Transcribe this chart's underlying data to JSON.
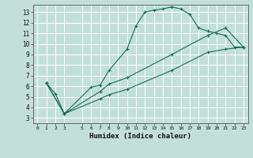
{
  "title": "",
  "xlabel": "Humidex (Indice chaleur)",
  "bg_color": "#c2e0d8",
  "grid_color": "#ffffff",
  "line_color": "#1a6b5a",
  "xlim": [
    -0.5,
    23.5
  ],
  "ylim": [
    2.5,
    13.7
  ],
  "xticks": [
    0,
    1,
    2,
    3,
    5,
    6,
    7,
    8,
    9,
    10,
    11,
    12,
    13,
    14,
    15,
    16,
    17,
    18,
    19,
    20,
    21,
    22,
    23
  ],
  "yticks": [
    3,
    4,
    5,
    6,
    7,
    8,
    9,
    10,
    11,
    12,
    13
  ],
  "line1_x": [
    1,
    2,
    3,
    6,
    7,
    8,
    10,
    11,
    12,
    13,
    14,
    15,
    16,
    17,
    18,
    19,
    20,
    21,
    22,
    23
  ],
  "line1_y": [
    6.3,
    5.3,
    3.4,
    5.9,
    6.1,
    7.5,
    9.5,
    11.7,
    13.0,
    13.2,
    13.3,
    13.5,
    13.3,
    12.8,
    11.5,
    11.2,
    11.0,
    10.8,
    9.7,
    9.7
  ],
  "line2_x": [
    1,
    3,
    7,
    8,
    10,
    15,
    19,
    21,
    23
  ],
  "line2_y": [
    6.3,
    3.4,
    5.5,
    6.2,
    6.8,
    9.0,
    10.8,
    11.5,
    9.7
  ],
  "line3_x": [
    1,
    3,
    7,
    8,
    10,
    15,
    19,
    21,
    23
  ],
  "line3_y": [
    6.3,
    3.4,
    4.8,
    5.2,
    5.7,
    7.5,
    9.2,
    9.5,
    9.7
  ]
}
